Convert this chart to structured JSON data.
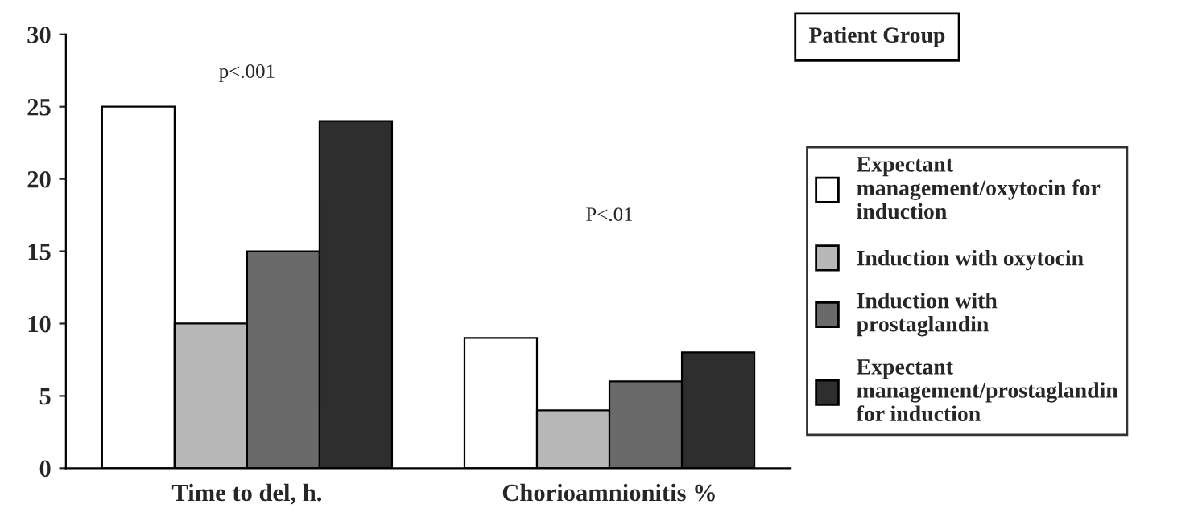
{
  "chart_data": {
    "type": "bar",
    "categories": [
      "Time to del, h.",
      "Chorioamnionitis %"
    ],
    "series": [
      {
        "name": "Expectant management/oxytocin for induction",
        "color": "#ffffff",
        "values": [
          25,
          9
        ]
      },
      {
        "name": "Induction with oxytocin",
        "color": "#b8b8b8",
        "values": [
          10,
          4
        ]
      },
      {
        "name": "Induction with prostaglandin",
        "color": "#6a6a6a",
        "values": [
          15,
          6
        ]
      },
      {
        "name": "Expectant management/prostaglandin for induction",
        "color": "#2e2e2e",
        "values": [
          24,
          8
        ]
      }
    ],
    "legend_title": "Patient Group",
    "legend": "right",
    "ylim": [
      0,
      30
    ],
    "yticks": [
      0,
      5,
      10,
      15,
      20,
      25,
      30
    ],
    "annotations": [
      "p<.001",
      "P<.01"
    ],
    "grid": false
  }
}
